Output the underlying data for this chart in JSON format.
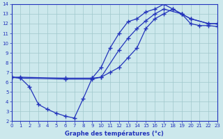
{
  "xlabel": "Graphe des températures (°c)",
  "xlim": [
    0,
    23
  ],
  "ylim": [
    2,
    14
  ],
  "xticks": [
    0,
    1,
    2,
    3,
    4,
    5,
    6,
    7,
    8,
    9,
    10,
    11,
    12,
    13,
    14,
    15,
    16,
    17,
    18,
    19,
    20,
    21,
    22,
    23
  ],
  "yticks": [
    2,
    3,
    4,
    5,
    6,
    7,
    8,
    9,
    10,
    11,
    12,
    13,
    14
  ],
  "bg_color": "#cce8ec",
  "line_color": "#2233bb",
  "grid_color": "#a0c8cc",
  "line1_x": [
    0,
    1,
    2,
    3,
    4,
    5,
    6,
    7,
    8,
    9,
    10,
    11,
    12,
    13,
    14,
    15,
    16,
    17,
    18,
    19,
    20,
    21,
    22,
    23
  ],
  "line1_y": [
    6.5,
    6.4,
    5.5,
    3.7,
    3.2,
    2.8,
    2.5,
    2.3,
    4.3,
    6.4,
    6.5,
    7.0,
    7.5,
    8.5,
    9.5,
    11.5,
    12.5,
    13.0,
    13.5,
    13.0,
    12.0,
    11.8,
    11.8,
    11.7
  ],
  "line2_x": [
    0,
    1,
    6,
    9,
    10,
    12,
    13,
    14,
    15,
    16,
    17,
    19,
    20,
    22,
    23
  ],
  "line2_y": [
    6.5,
    6.4,
    6.3,
    6.3,
    6.5,
    9.3,
    10.5,
    11.5,
    12.3,
    13.0,
    13.5,
    13.0,
    12.5,
    12.0,
    12.0
  ],
  "line3_x": [
    0,
    1,
    6,
    9,
    10,
    11,
    12,
    13,
    14,
    15,
    16,
    17,
    18,
    19,
    20,
    22,
    23
  ],
  "line3_y": [
    6.5,
    6.5,
    6.4,
    6.4,
    7.5,
    9.5,
    11.0,
    12.2,
    12.5,
    13.2,
    13.5,
    14.0,
    13.5,
    13.0,
    12.5,
    12.0,
    12.0
  ]
}
